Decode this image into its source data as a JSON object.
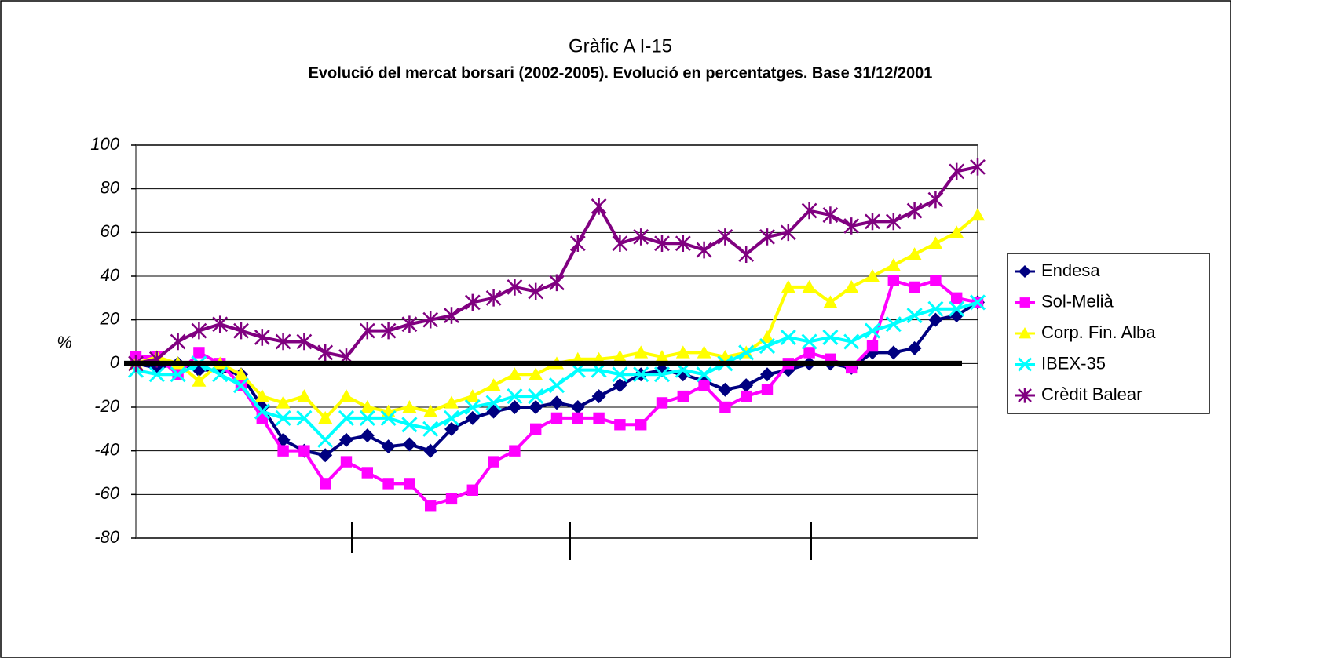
{
  "chart_data": {
    "type": "line",
    "title": "Gràfic A I-15",
    "subtitle": "Evolució del mercat borsari (2002-2005). Evolució en percentatges. Base 31/12/2001",
    "y_label": "%",
    "categories": [
      null,
      null,
      null,
      null,
      null,
      null,
      null,
      null,
      null,
      null,
      null,
      null,
      null,
      null,
      null,
      null,
      null,
      null,
      null,
      null,
      null,
      null,
      null,
      null,
      null,
      null,
      null,
      null,
      null,
      null,
      null,
      null,
      null,
      null,
      null,
      null,
      null,
      null,
      null,
      null,
      null
    ],
    "series": [
      {
        "name": "Endesa",
        "color": "#000080",
        "marker": "diamond",
        "values": [
          0,
          -2,
          0,
          -3,
          -3,
          -5,
          -20,
          -35,
          -40,
          -42,
          -35,
          -33,
          -38,
          -37,
          -40,
          -30,
          -25,
          -22,
          -20,
          -20,
          -18,
          -20,
          -15,
          -10,
          -5,
          -3,
          -5,
          -8,
          -12,
          -10,
          -5,
          -3,
          0,
          0,
          -2,
          5,
          5,
          7,
          20,
          22,
          28
        ]
      },
      {
        "name": "Sol-Melià",
        "color": "#ff00ff",
        "marker": "square",
        "values": [
          3,
          3,
          -5,
          5,
          0,
          -10,
          -25,
          -40,
          -40,
          -55,
          -45,
          -50,
          -55,
          -55,
          -65,
          -62,
          -58,
          -45,
          -40,
          -30,
          -25,
          -25,
          -25,
          -28,
          -28,
          -18,
          -15,
          -10,
          -20,
          -15,
          -12,
          0,
          5,
          2,
          -2,
          8,
          38,
          35,
          38,
          30,
          28
        ]
      },
      {
        "name": "Corp. Fin. Alba",
        "color": "#ffff00",
        "marker": "triangle",
        "values": [
          0,
          3,
          0,
          -8,
          0,
          -5,
          -15,
          -18,
          -15,
          -25,
          -15,
          -20,
          -22,
          -20,
          -22,
          -18,
          -15,
          -10,
          -5,
          -5,
          0,
          2,
          2,
          3,
          5,
          3,
          5,
          5,
          3,
          5,
          12,
          35,
          35,
          28,
          35,
          40,
          45,
          50,
          55,
          60,
          68
        ]
      },
      {
        "name": "IBEX-35",
        "color": "#00ffff",
        "marker": "x",
        "values": [
          -3,
          -5,
          -5,
          0,
          -5,
          -10,
          -22,
          -25,
          -25,
          -35,
          -25,
          -25,
          -25,
          -28,
          -30,
          -25,
          -20,
          -18,
          -15,
          -15,
          -10,
          -3,
          -3,
          -5,
          -5,
          -5,
          -3,
          -5,
          0,
          5,
          8,
          12,
          10,
          12,
          10,
          15,
          18,
          22,
          25,
          25,
          28
        ]
      },
      {
        "name": "Crèdit Balear",
        "color": "#800080",
        "marker": "asterisk",
        "values": [
          0,
          2,
          10,
          15,
          18,
          15,
          12,
          10,
          10,
          5,
          3,
          15,
          15,
          18,
          20,
          22,
          28,
          30,
          35,
          33,
          37,
          55,
          72,
          55,
          58,
          55,
          55,
          52,
          58,
          50,
          58,
          60,
          70,
          68,
          63,
          65,
          65,
          70,
          75,
          88,
          90
        ]
      }
    ],
    "ylim": [
      -80,
      100
    ],
    "yticks": [
      -80,
      -60,
      -40,
      -20,
      0,
      20,
      40,
      60,
      80,
      100
    ],
    "grid": true,
    "legend": "right"
  }
}
